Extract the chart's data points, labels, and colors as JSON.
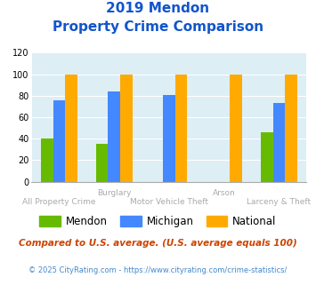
{
  "title_line1": "2019 Mendon",
  "title_line2": "Property Crime Comparison",
  "categories": [
    "All Property Crime",
    "Burglary",
    "Motor Vehicle Theft",
    "Arson",
    "Larceny & Theft"
  ],
  "top_labels": [
    "",
    "Burglary",
    "",
    "Arson",
    ""
  ],
  "bottom_labels": [
    "All Property Crime",
    "",
    "Motor Vehicle Theft",
    "",
    "Larceny & Theft"
  ],
  "mendon": [
    40,
    35,
    0,
    0,
    46
  ],
  "michigan": [
    76,
    84,
    81,
    0,
    73
  ],
  "national": [
    100,
    100,
    100,
    100,
    100
  ],
  "bar_colors": {
    "mendon": "#66bb00",
    "michigan": "#4488ff",
    "national": "#ffaa00"
  },
  "ylim": [
    0,
    120
  ],
  "yticks": [
    0,
    20,
    40,
    60,
    80,
    100,
    120
  ],
  "legend_labels": [
    "Mendon",
    "Michigan",
    "National"
  ],
  "footnote1": "Compared to U.S. average. (U.S. average equals 100)",
  "footnote2": "© 2025 CityRating.com - https://www.cityrating.com/crime-statistics/",
  "bg_color": "#ddeef5",
  "title_color": "#1155cc",
  "footnote1_color": "#cc4400",
  "footnote2_color": "#4488cc"
}
